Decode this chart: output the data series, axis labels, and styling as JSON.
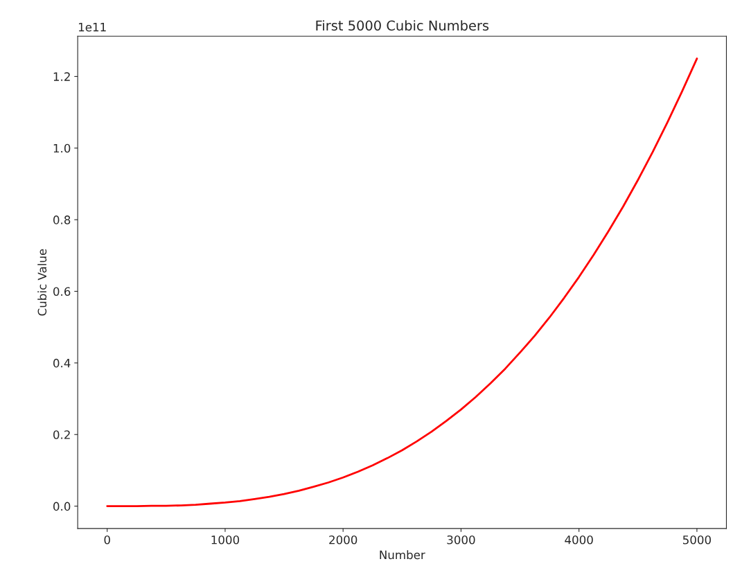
{
  "chart_data": {
    "type": "line",
    "title": "First 5000 Cubic Numbers",
    "xlabel": "Number",
    "ylabel": "Cubic Value",
    "annotations": [
      "1e11"
    ],
    "x": [
      0,
      125,
      250,
      375,
      500,
      625,
      750,
      875,
      1000,
      1125,
      1250,
      1375,
      1500,
      1625,
      1750,
      1875,
      2000,
      2125,
      2250,
      2375,
      2500,
      2625,
      2750,
      2875,
      3000,
      3125,
      3250,
      3375,
      3500,
      3625,
      3750,
      3875,
      4000,
      4125,
      4250,
      4375,
      4500,
      4625,
      4750,
      4875,
      5000
    ],
    "series": [
      {
        "color": "#ff0000",
        "values": [
          0,
          0,
          0,
          0.001,
          0.001,
          0.002,
          0.004,
          0.007,
          0.01,
          0.014,
          0.02,
          0.026,
          0.034,
          0.043,
          0.054,
          0.066,
          0.08,
          0.096,
          0.114,
          0.134,
          0.156,
          0.181,
          0.208,
          0.238,
          0.27,
          0.305,
          0.343,
          0.384,
          0.429,
          0.476,
          0.527,
          0.582,
          0.64,
          0.702,
          0.768,
          0.837,
          0.911,
          0.989,
          1.072,
          1.159,
          1.25
        ]
      }
    ],
    "xlim": [
      -250,
      5250
    ],
    "ylim": [
      -0.0625,
      1.3125
    ],
    "xticks": [
      0,
      1000,
      2000,
      3000,
      4000,
      5000
    ],
    "yticks": [
      {
        "value": 0,
        "label": "0.0"
      },
      0.2,
      0.4,
      0.6,
      0.8,
      {
        "value": 1,
        "label": "1.0"
      },
      1.2
    ],
    "grid": false,
    "marker": "none",
    "line_style": "solid"
  }
}
